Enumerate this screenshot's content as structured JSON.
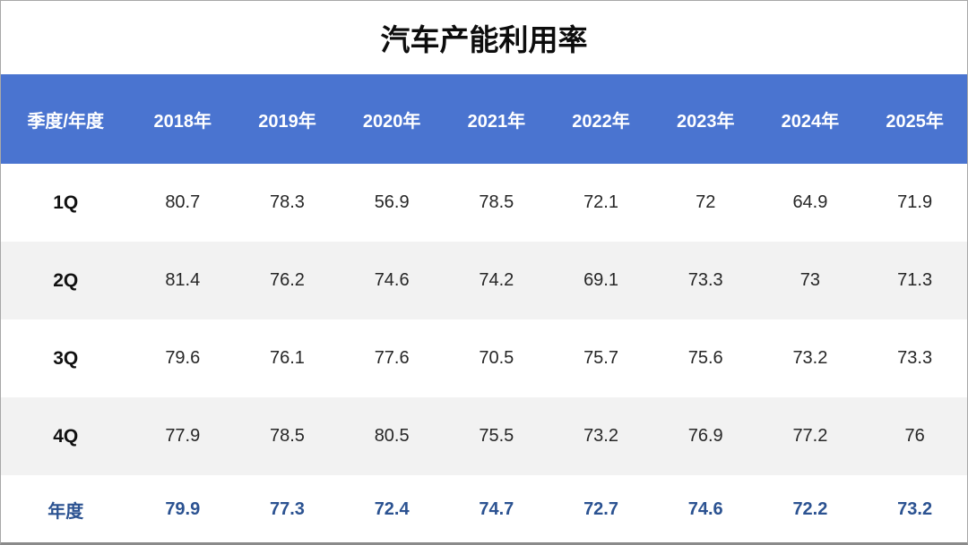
{
  "title": "汽车产能利用率",
  "colors": {
    "header_bg": "#4a74d0",
    "header_text": "#ffffff",
    "stripe_bg": "#f2f2f2",
    "body_text": "#262626",
    "total_text": "#2b5291"
  },
  "table": {
    "corner_label": "季度/年度"
  },
  "chart_data": {
    "type": "table",
    "title": "汽车产能利用率",
    "categories": [
      "2018年",
      "2019年",
      "2020年",
      "2021年",
      "2022年",
      "2023年",
      "2024年",
      "2025年"
    ],
    "series": [
      {
        "name": "1Q",
        "values": [
          80.7,
          78.3,
          56.9,
          78.5,
          72.1,
          72,
          64.9,
          71.9
        ]
      },
      {
        "name": "2Q",
        "values": [
          81.4,
          76.2,
          74.6,
          74.2,
          69.1,
          73.3,
          73,
          71.3
        ]
      },
      {
        "name": "3Q",
        "values": [
          79.6,
          76.1,
          77.6,
          70.5,
          75.7,
          75.6,
          73.2,
          73.3
        ]
      },
      {
        "name": "4Q",
        "values": [
          77.9,
          78.5,
          80.5,
          75.5,
          73.2,
          76.9,
          77.2,
          76
        ]
      },
      {
        "name": "年度",
        "values": [
          79.9,
          77.3,
          72.4,
          74.7,
          72.7,
          74.6,
          72.2,
          73.2
        ]
      }
    ],
    "layout": {
      "first_row_is_header": true,
      "striped_rows": true,
      "total_row": "年度"
    }
  }
}
